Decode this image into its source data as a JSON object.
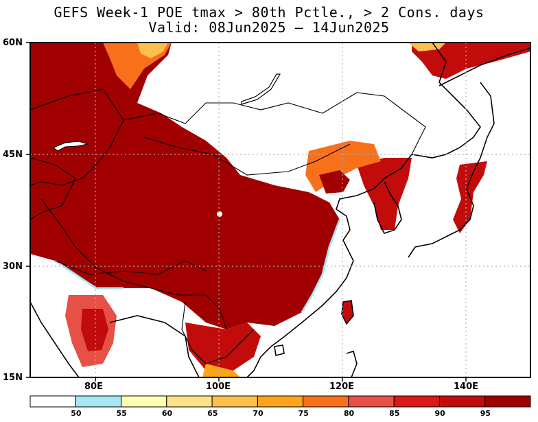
{
  "title_line1": "GEFS Week-1 POE tmax > 80th Pctle., > 2 Cons. days",
  "title_line2": "Valid: 08Jun2025 – 14Jun2025",
  "lat_labels": [
    "60N",
    "45N",
    "30N",
    "15N"
  ],
  "lon_labels": [
    "80E",
    "100E",
    "120E",
    "140E"
  ],
  "colorbar": {
    "ticks": [
      "50",
      "55",
      "60",
      "65",
      "70",
      "75",
      "80",
      "85",
      "90",
      "95"
    ],
    "colors": [
      "#ffffff",
      "#a6e6f5",
      "#ffffb0",
      "#fee288",
      "#fdc04f",
      "#fca31a",
      "#f9701a",
      "#e65045",
      "#d91a17",
      "#c20c0c",
      "#a10000"
    ]
  },
  "colors": {
    "heat_max": "#a10000",
    "heat_high": "#c20c0c",
    "heat_mid": "#f9701a",
    "heat_low": "#fdc04f",
    "cool": "#a6e6f5"
  }
}
